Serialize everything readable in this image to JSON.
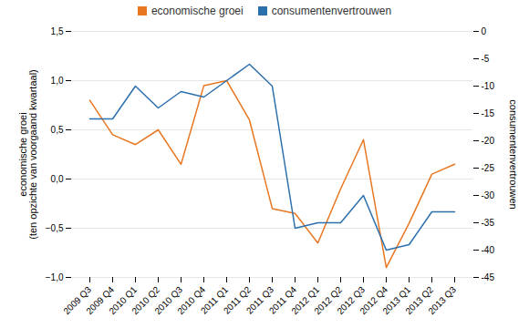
{
  "chart_data": {
    "type": "line",
    "categories": [
      "2009 Q3",
      "2009 Q4",
      "2010 Q1",
      "2010 Q2",
      "2010 Q3",
      "2010 Q4",
      "2011 Q1",
      "2011 Q2",
      "2011 Q3",
      "2011 Q4",
      "2012 Q1",
      "2012 Q2",
      "2012 Q3",
      "2012 Q4",
      "2013 Q1",
      "2013 Q2",
      "2013 Q3"
    ],
    "series": [
      {
        "name": "economische groei",
        "color": "#e87722",
        "values": [
          0.8,
          0.45,
          0.35,
          0.5,
          0.15,
          0.95,
          1.0,
          0.6,
          -0.3,
          -0.35,
          -0.65,
          -0.1,
          0.4,
          -0.9,
          -0.45,
          0.05,
          0.15
        ]
      },
      {
        "name": "consumentenvertrouwen",
        "color": "#2c6fad",
        "axis": "y2",
        "values": [
          -16,
          -16,
          -10,
          -14,
          -11,
          -12,
          -9,
          -6,
          -10,
          -36,
          -35,
          -35,
          -30,
          -40,
          -39,
          -33,
          -33
        ]
      }
    ],
    "ylabel": "economische groei\n(ten opzichte van voorgaand kwartaal)",
    "y2label": "consumentenvertrouwen",
    "ylim": [
      -1.0,
      1.5
    ],
    "yticks": [
      {
        "value": -1.0,
        "label": "−1,0"
      },
      {
        "value": -0.5,
        "label": "−0,5"
      },
      {
        "value": 0.0,
        "label": "0,0"
      },
      {
        "value": 0.5,
        "label": "0,5"
      },
      {
        "value": 1.0,
        "label": "1,0"
      },
      {
        "value": 1.5,
        "label": "1,5"
      }
    ],
    "y2lim": [
      -45,
      0
    ],
    "y2ticks": [
      -45,
      -40,
      -35,
      -30,
      -25,
      -20,
      -15,
      -10,
      -5,
      0
    ],
    "grid": true,
    "legend": "top"
  }
}
